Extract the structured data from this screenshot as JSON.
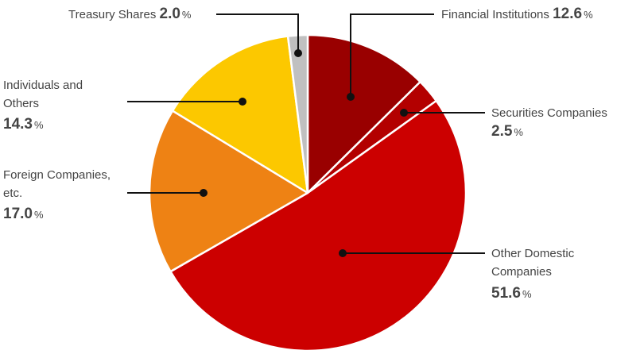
{
  "chart_data": {
    "type": "pie",
    "title": "",
    "unit": "%",
    "slices": [
      {
        "label": "Financial Institutions",
        "value": 12.6,
        "color": "#990000"
      },
      {
        "label": "Securities Companies",
        "value": 2.5,
        "color": "#b30000"
      },
      {
        "label": "Other Domestic Companies",
        "value": 51.6,
        "color": "#cc0000"
      },
      {
        "label": "Foreign Companies, etc.",
        "value": 17.0,
        "color": "#ee8214"
      },
      {
        "label": "Individuals and Others",
        "value": 14.3,
        "color": "#fcc800"
      },
      {
        "label": "Treasury Shares",
        "value": 2.0,
        "color": "#c0c0c0"
      }
    ],
    "start_angle": "12 o'clock",
    "direction": "clockwise",
    "label_lines": {
      "financial": "Financial Institutions",
      "securities": "Securities Companies",
      "other_domestic_1": "Other Domestic",
      "other_domestic_2": "Companies",
      "foreign_1": "Foreign Companies,",
      "foreign_2": "etc.",
      "individuals_1": "Individuals and",
      "individuals_2": "Others",
      "treasury": "Treasury Shares"
    }
  }
}
